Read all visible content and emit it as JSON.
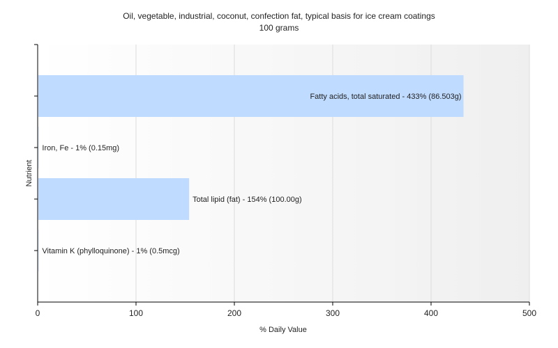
{
  "chart_data": {
    "type": "bar",
    "orientation": "horizontal",
    "title": "Oil, vegetable, industrial, coconut, confection fat, typical basis for ice cream coatings",
    "subtitle": "100 grams",
    "xlabel": "% Daily Value",
    "ylabel": "Nutrient",
    "xlim": [
      0,
      500
    ],
    "xticks": [
      0,
      100,
      200,
      300,
      400,
      500
    ],
    "grid": true,
    "bar_color": "#bfdbff",
    "categories": [
      "Fatty acids, total saturated",
      "Iron, Fe",
      "Total lipid (fat)",
      "Vitamin K (phylloquinone)"
    ],
    "values": [
      433,
      1,
      154,
      1
    ],
    "labels": [
      "Fatty acids, total saturated - 433% (86.503g)",
      "Iron, Fe - 1% (0.15mg)",
      "Total lipid (fat) - 154% (100.00g)",
      "Vitamin K (phylloquinone) - 1% (0.5mcg)"
    ]
  }
}
